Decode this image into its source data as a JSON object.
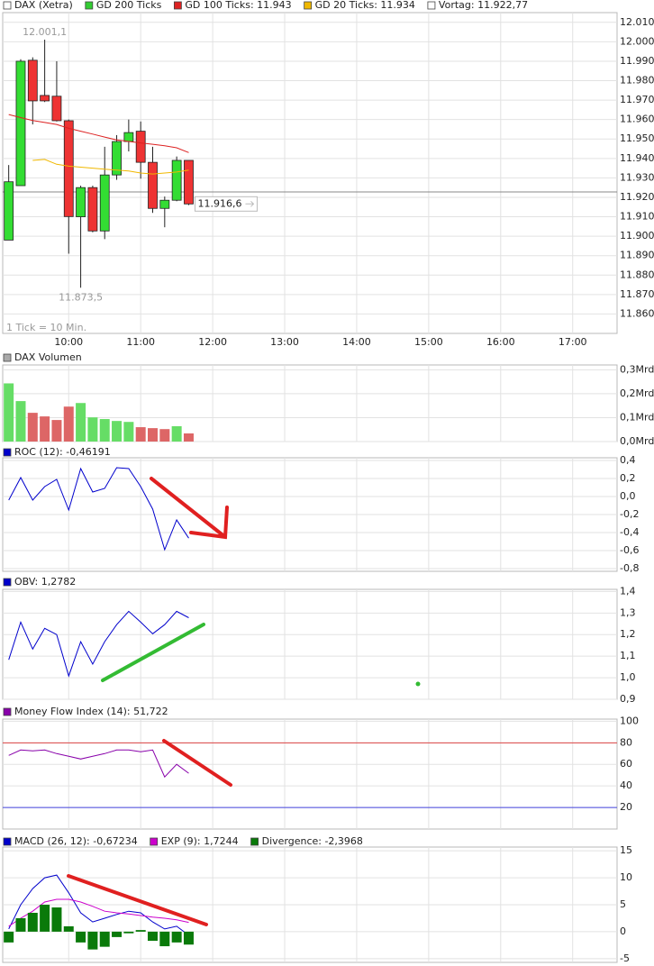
{
  "chart_data": [
    {
      "type": "candlestick",
      "name": "DAX (Xetra)",
      "x": [
        550,
        560,
        570,
        580,
        590,
        600,
        610,
        620,
        630,
        640,
        650,
        660,
        670,
        680,
        690,
        700
      ],
      "open": [
        11898,
        11926,
        11990.5,
        11972.4,
        11972,
        11959.4,
        11910,
        11925,
        11902.7,
        11931.5,
        11948.7,
        11954,
        11938,
        11914.3,
        11918.5,
        11939
      ],
      "high": [
        11936.6,
        11991,
        11992,
        12001.1,
        11990,
        11960,
        11926,
        11926,
        11946,
        11952,
        11960,
        11959,
        11946,
        11920.4,
        11941,
        11939
      ],
      "low": [
        11898,
        11926,
        11957.5,
        11969,
        11959,
        11891,
        11873.5,
        11902,
        11898.5,
        11929,
        11943.6,
        11929.6,
        11912,
        11904.6,
        11918,
        11916
      ],
      "close": [
        11928,
        11990,
        11969.6,
        11969.6,
        11959.4,
        11910.1,
        11925,
        11902.7,
        11931.5,
        11948.7,
        11953.3,
        11938,
        11914.3,
        11918.5,
        11939,
        11916.6
      ],
      "up_color": "#33dd33",
      "down_color": "#ee3333",
      "series": [
        {
          "name": "GD 200 Ticks",
          "color": "#33cc33",
          "values": [
            null,
            null,
            null,
            null,
            null,
            null,
            null,
            null,
            null,
            null,
            null,
            null,
            null,
            null,
            null,
            null
          ]
        },
        {
          "name": "GD 100 Ticks: 11.943",
          "color": "#dd2222",
          "values": [
            11962.6,
            11961,
            11959.5,
            11958.5,
            11957.5,
            11955.5,
            11954,
            11952.5,
            11951,
            11949.5,
            11948.7,
            11948,
            11947.3,
            11946.5,
            11945.5,
            11943
          ]
        },
        {
          "name": "GD 20 Ticks: 11.934",
          "color": "#f0b800",
          "values": [
            null,
            null,
            11939,
            11939.5,
            11937,
            11936,
            11935.5,
            11935,
            11934.5,
            11934,
            11933.5,
            11932.5,
            11932,
            11932.5,
            11933,
            11934
          ]
        }
      ],
      "reference_line": {
        "name": "Vortag: 11.922,77",
        "value": 11922.77
      },
      "last_label": {
        "label": "11.916,6",
        "value": 11916.6
      },
      "annotations": [
        {
          "x": 580,
          "label": "12.001,1",
          "value": 12001.1
        },
        {
          "x": 610,
          "label": "11.873,5",
          "value": 11873.5
        }
      ],
      "note": "1 Tick = 10 Min.",
      "xlim": [
        545,
        1057
      ],
      "xticks": [
        {
          "value": 600,
          "label": "10:00"
        },
        {
          "value": 660,
          "label": "11:00"
        },
        {
          "value": 720,
          "label": "12:00"
        },
        {
          "value": 780,
          "label": "13:00"
        },
        {
          "value": 840,
          "label": "14:00"
        },
        {
          "value": 900,
          "label": "15:00"
        },
        {
          "value": 960,
          "label": "16:00"
        },
        {
          "value": 1020,
          "label": "17:00"
        }
      ],
      "ylim": [
        11850,
        12015
      ],
      "yticks": [
        {
          "value": 12010,
          "label": "12.010"
        },
        {
          "value": 12000,
          "label": "12.000"
        },
        {
          "value": 11990,
          "label": "11.990"
        },
        {
          "value": 11980,
          "label": "11.980"
        },
        {
          "value": 11970,
          "label": "11.970"
        },
        {
          "value": 11960,
          "label": "11.960"
        },
        {
          "value": 11950,
          "label": "11.950"
        },
        {
          "value": 11940,
          "label": "11.940"
        },
        {
          "value": 11930,
          "label": "11.930"
        },
        {
          "value": 11920,
          "label": "11.920"
        },
        {
          "value": 11910,
          "label": "11.910"
        },
        {
          "value": 11900,
          "label": "11.900"
        },
        {
          "value": 11890,
          "label": "11.890"
        },
        {
          "value": 11880,
          "label": "11.880"
        },
        {
          "value": 11870,
          "label": "11.870"
        },
        {
          "value": 11860,
          "label": "11.860"
        }
      ],
      "grid": true
    },
    {
      "type": "bar",
      "series": [
        {
          "name": "DAX Volumen",
          "color": "#aaaaaa",
          "type": "bar",
          "values": [
            0.243,
            0.169,
            0.12,
            0.105,
            0.09,
            0.146,
            0.161,
            0.101,
            0.094,
            0.086,
            0.082,
            0.06,
            0.056,
            0.052,
            0.064,
            0.034
          ],
          "colors": [
            "#66dd66",
            "#66dd66",
            "#dd6666",
            "#dd6666",
            "#dd6666",
            "#dd6666",
            "#66dd66",
            "#66dd66",
            "#66dd66",
            "#66dd66",
            "#66dd66",
            "#dd6666",
            "#dd6666",
            "#dd6666",
            "#66dd66",
            "#dd6666"
          ]
        }
      ],
      "ylim": [
        0,
        0.32
      ],
      "yticks": [
        {
          "value": 0.3,
          "label": "0,3Mrd"
        },
        {
          "value": 0.2,
          "label": "0,2Mrd"
        },
        {
          "value": 0.1,
          "label": "0,1Mrd"
        },
        {
          "value": 0,
          "label": "0,0Mrd"
        }
      ],
      "grid": true
    },
    {
      "type": "line",
      "series": [
        {
          "name": "ROC (12): -0,46191",
          "color": "#0000cc",
          "type": "line",
          "values": [
            -0.04,
            0.21,
            -0.04,
            0.11,
            0.19,
            -0.15,
            0.31,
            0.05,
            0.09,
            0.32,
            0.31,
            0.11,
            -0.14,
            -0.59,
            -0.26,
            -0.46191
          ]
        }
      ],
      "ylim": [
        -0.83,
        0.43
      ],
      "yticks": [
        {
          "value": 0.4,
          "label": "0,4"
        },
        {
          "value": 0.2,
          "label": "0,2"
        },
        {
          "value": 0,
          "label": "0,0"
        },
        {
          "value": -0.2,
          "label": "-0,2"
        },
        {
          "value": -0.4,
          "label": "-0,4"
        },
        {
          "value": -0.6,
          "label": "-0,6"
        },
        {
          "value": -0.8,
          "label": "-0,8"
        }
      ],
      "grid": true
    },
    {
      "type": "line",
      "series": [
        {
          "name": "OBV: 1,2782",
          "color": "#0000cc",
          "type": "line",
          "values": [
            1.083,
            1.258,
            1.133,
            1.229,
            1.2,
            1.008,
            1.167,
            1.063,
            1.167,
            1.246,
            1.308,
            1.258,
            1.204,
            1.246,
            1.308,
            1.2782
          ]
        }
      ],
      "ylim": [
        0.9,
        1.41
      ],
      "yticks": [
        {
          "value": 1.4,
          "label": "1,4"
        },
        {
          "value": 1.3,
          "label": "1,3"
        },
        {
          "value": 1.2,
          "label": "1,2"
        },
        {
          "value": 1.1,
          "label": "1,1"
        },
        {
          "value": 1,
          "label": "1,0"
        },
        {
          "value": 0.9,
          "label": "0,9"
        }
      ],
      "grid": true
    },
    {
      "type": "line",
      "series": [
        {
          "name": "Money Flow Index (14): 51,722",
          "color": "#8800aa",
          "type": "line",
          "values": [
            68.3,
            73.3,
            72.5,
            73.3,
            70,
            67.5,
            65,
            67.5,
            70,
            73.3,
            73.3,
            71.7,
            73.3,
            48.3,
            60,
            51.722
          ]
        }
      ],
      "reference_lines": [
        {
          "value": 80,
          "color": "#dd4444"
        },
        {
          "value": 20,
          "color": "#4444dd"
        }
      ],
      "ylim": [
        0,
        102
      ],
      "yticks": [
        100,
        80,
        60,
        40,
        20
      ],
      "grid": true
    },
    {
      "type": "combo",
      "series": [
        {
          "name": "MACD (26, 12): -0,67234",
          "color": "#0000cc",
          "type": "line",
          "values": [
            0.5,
            5,
            8,
            10,
            10.5,
            7.2,
            3.5,
            1.8,
            2.5,
            3.2,
            3.8,
            3.5,
            1.8,
            0.5,
            1,
            -0.67234
          ]
        },
        {
          "name": "EXP (9): 1,7244",
          "color": "#cc00cc",
          "type": "line",
          "values": [
            1,
            2.5,
            3.8,
            5.5,
            6,
            6,
            5.5,
            4.7,
            3.8,
            3.5,
            3.3,
            3,
            2.7,
            2.5,
            2.2,
            1.7244
          ]
        },
        {
          "name": "Divergence: -2,3968",
          "color": "#0a7a0a",
          "type": "bar",
          "values": [
            -2,
            2.5,
            3.5,
            5,
            4.5,
            1,
            -2,
            -3.3,
            -2.8,
            -1,
            -0.3,
            0.3,
            -1.7,
            -2.7,
            -2,
            -2.3968
          ]
        }
      ],
      "ylim": [
        -5.7,
        15.7
      ],
      "yticks": [
        15,
        10,
        5,
        0,
        -5
      ],
      "grid": true
    }
  ]
}
